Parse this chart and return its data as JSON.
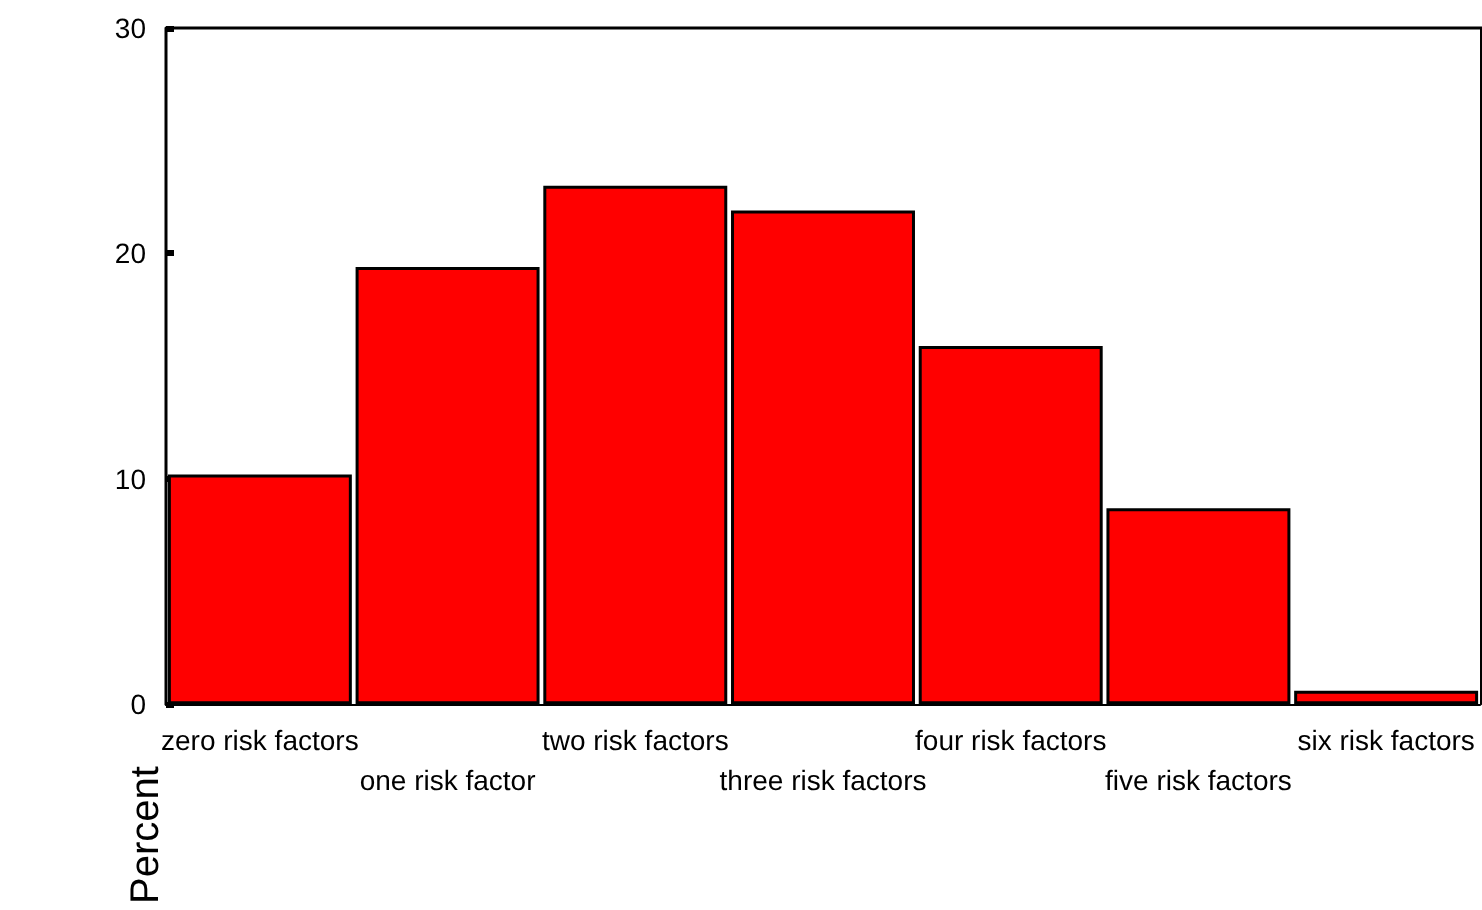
{
  "chart_data": {
    "type": "bar",
    "ylabel": "Percent",
    "categories": [
      "zero risk factors",
      "one risk factor",
      "two risk factors",
      "three risk factors",
      "four risk factors",
      "five risk factors",
      "six risk factors"
    ],
    "values": [
      10.2,
      19.4,
      23.0,
      21.9,
      15.9,
      8.7,
      0.6
    ],
    "color": "#ff0000",
    "ylim": [
      0,
      30
    ],
    "yticks": [
      0,
      10,
      20,
      30
    ],
    "grid": false
  }
}
